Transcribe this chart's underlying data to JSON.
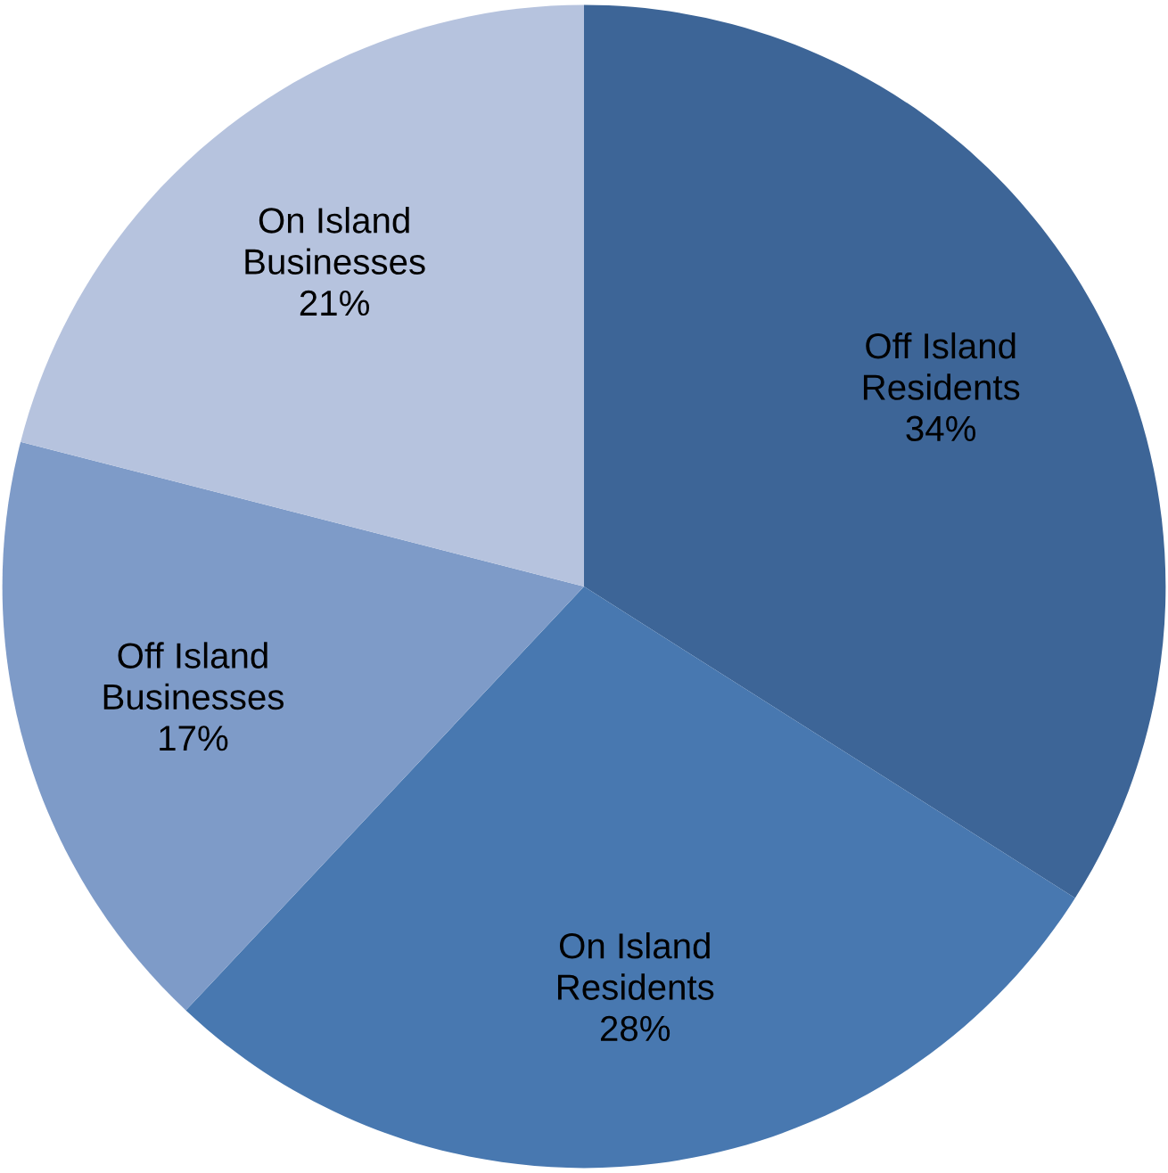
{
  "chart_data": {
    "type": "pie",
    "categories": [
      "Off Island Residents",
      "On Island Residents",
      "Off Island Businesses",
      "On Island Businesses"
    ],
    "values": [
      34,
      28,
      17,
      21
    ],
    "value_labels": [
      "34%",
      "28%",
      "17%",
      "21%"
    ],
    "colors": [
      "#3d6597",
      "#4878b0",
      "#7e9bc8",
      "#b6c3de"
    ],
    "legend": false
  }
}
